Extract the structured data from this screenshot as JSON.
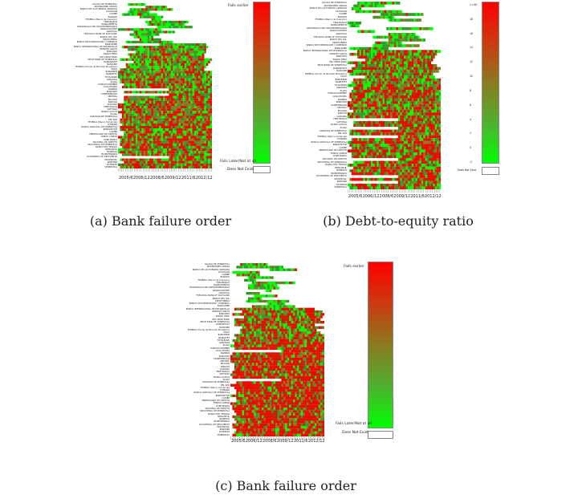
{
  "banks": [
    "GALICIA DE VENEZUELA",
    "INVERSIONES UNIDAS",
    "BANCO DE LAS FUERZAS ARMADAS",
    "GUAYACAN",
    "CARIBE",
    "BANORO",
    "FEDERAL (Banco de Inversion)",
    "FINALBANCO",
    "MANDAMIENTO",
    "DESARROLLO DEL MICROEMPRESARIO",
    "NOROCCIDENTE",
    "AGRICOLA",
    "THE ROYAL BANK OF SCOTLAND",
    "BANCO DEL SOL",
    "PROVIVIENDA",
    "BANCO DE EXPORTACION Y COMERCIO",
    "BANCARIBE",
    "BANCO INTERNACIONAL DE DESARROLLO",
    "ESPIRITO SANTO",
    "BANCORO",
    "BANCO PERU",
    "MIO AMOR BANK",
    "VELVE BANK DE VENEZUELA",
    "BANDAPOSIT",
    "BANCORP",
    "FEDERAL (Fondo de Mercado Monetario)",
    "MULTI",
    "BANCEREN",
    "BANDAFET",
    "TOTALBANK",
    "CANARIAS",
    "PLAZA",
    "PUBLICO NOMBRE",
    "CASA PROPIA",
    "BANPRO",
    "BANCORO",
    "CONFEDERADO",
    "CENTRAL",
    "BOLIVAR",
    "BANCOR",
    "GUAYANA",
    "TERE BANCO",
    "SOFITASA",
    "BANCO ACTIVO",
    "PLAZA",
    "CANARIAS DE VENEZUELA",
    "DEL SUR",
    "FEDERAL (Banco Comercial)",
    "CITIBANK",
    "BANCO AGRICOLA DE VENEZUELA",
    "BANPOSITIVE",
    "CARIBE",
    "VENEZOLANO DE CREDITO",
    "FONDO COMUN",
    "CORP BANCA",
    "NACIONAL DE CREDITO",
    "INDUSTRIAL DE VENEZUELA",
    "BANCO DEL TESORO",
    "MERCANTIL",
    "BANESCO",
    "BICENTENARIO",
    "OCCIDENTAL DE DESCUENTO",
    "PROVINCIAL",
    "BANFANB",
    "EXTERIOR",
    "VENEZUELA"
  ],
  "x_ticks": [
    "2005/6",
    "2006/12",
    "2008/6",
    "2009/12",
    "2011/6",
    "2012/12"
  ],
  "colorbar_labels": {
    "earlier": "Fails earlier",
    "later": "Fails Later/Not at all",
    "nodata": "Does Not Exist"
  },
  "colorbar_ticks_b": [
    "&gt;=90",
    "18",
    "16",
    "14",
    "12",
    "10",
    "8",
    "6",
    "4",
    "2",
    "0",
    "-2",
    "Does Not Exist"
  ],
  "colors": {
    "red": "#ff0000",
    "dark_red": "#c81e00",
    "olive": "#8a7a20",
    "green": "#00ff00",
    "dark_green": "#2e9a2e",
    "white": "#ffffff"
  },
  "captions": {
    "a": "(a) Bank failure order",
    "b": "(b) Debt-to-equity ratio",
    "c": "(c) Bank failure order"
  }
}
